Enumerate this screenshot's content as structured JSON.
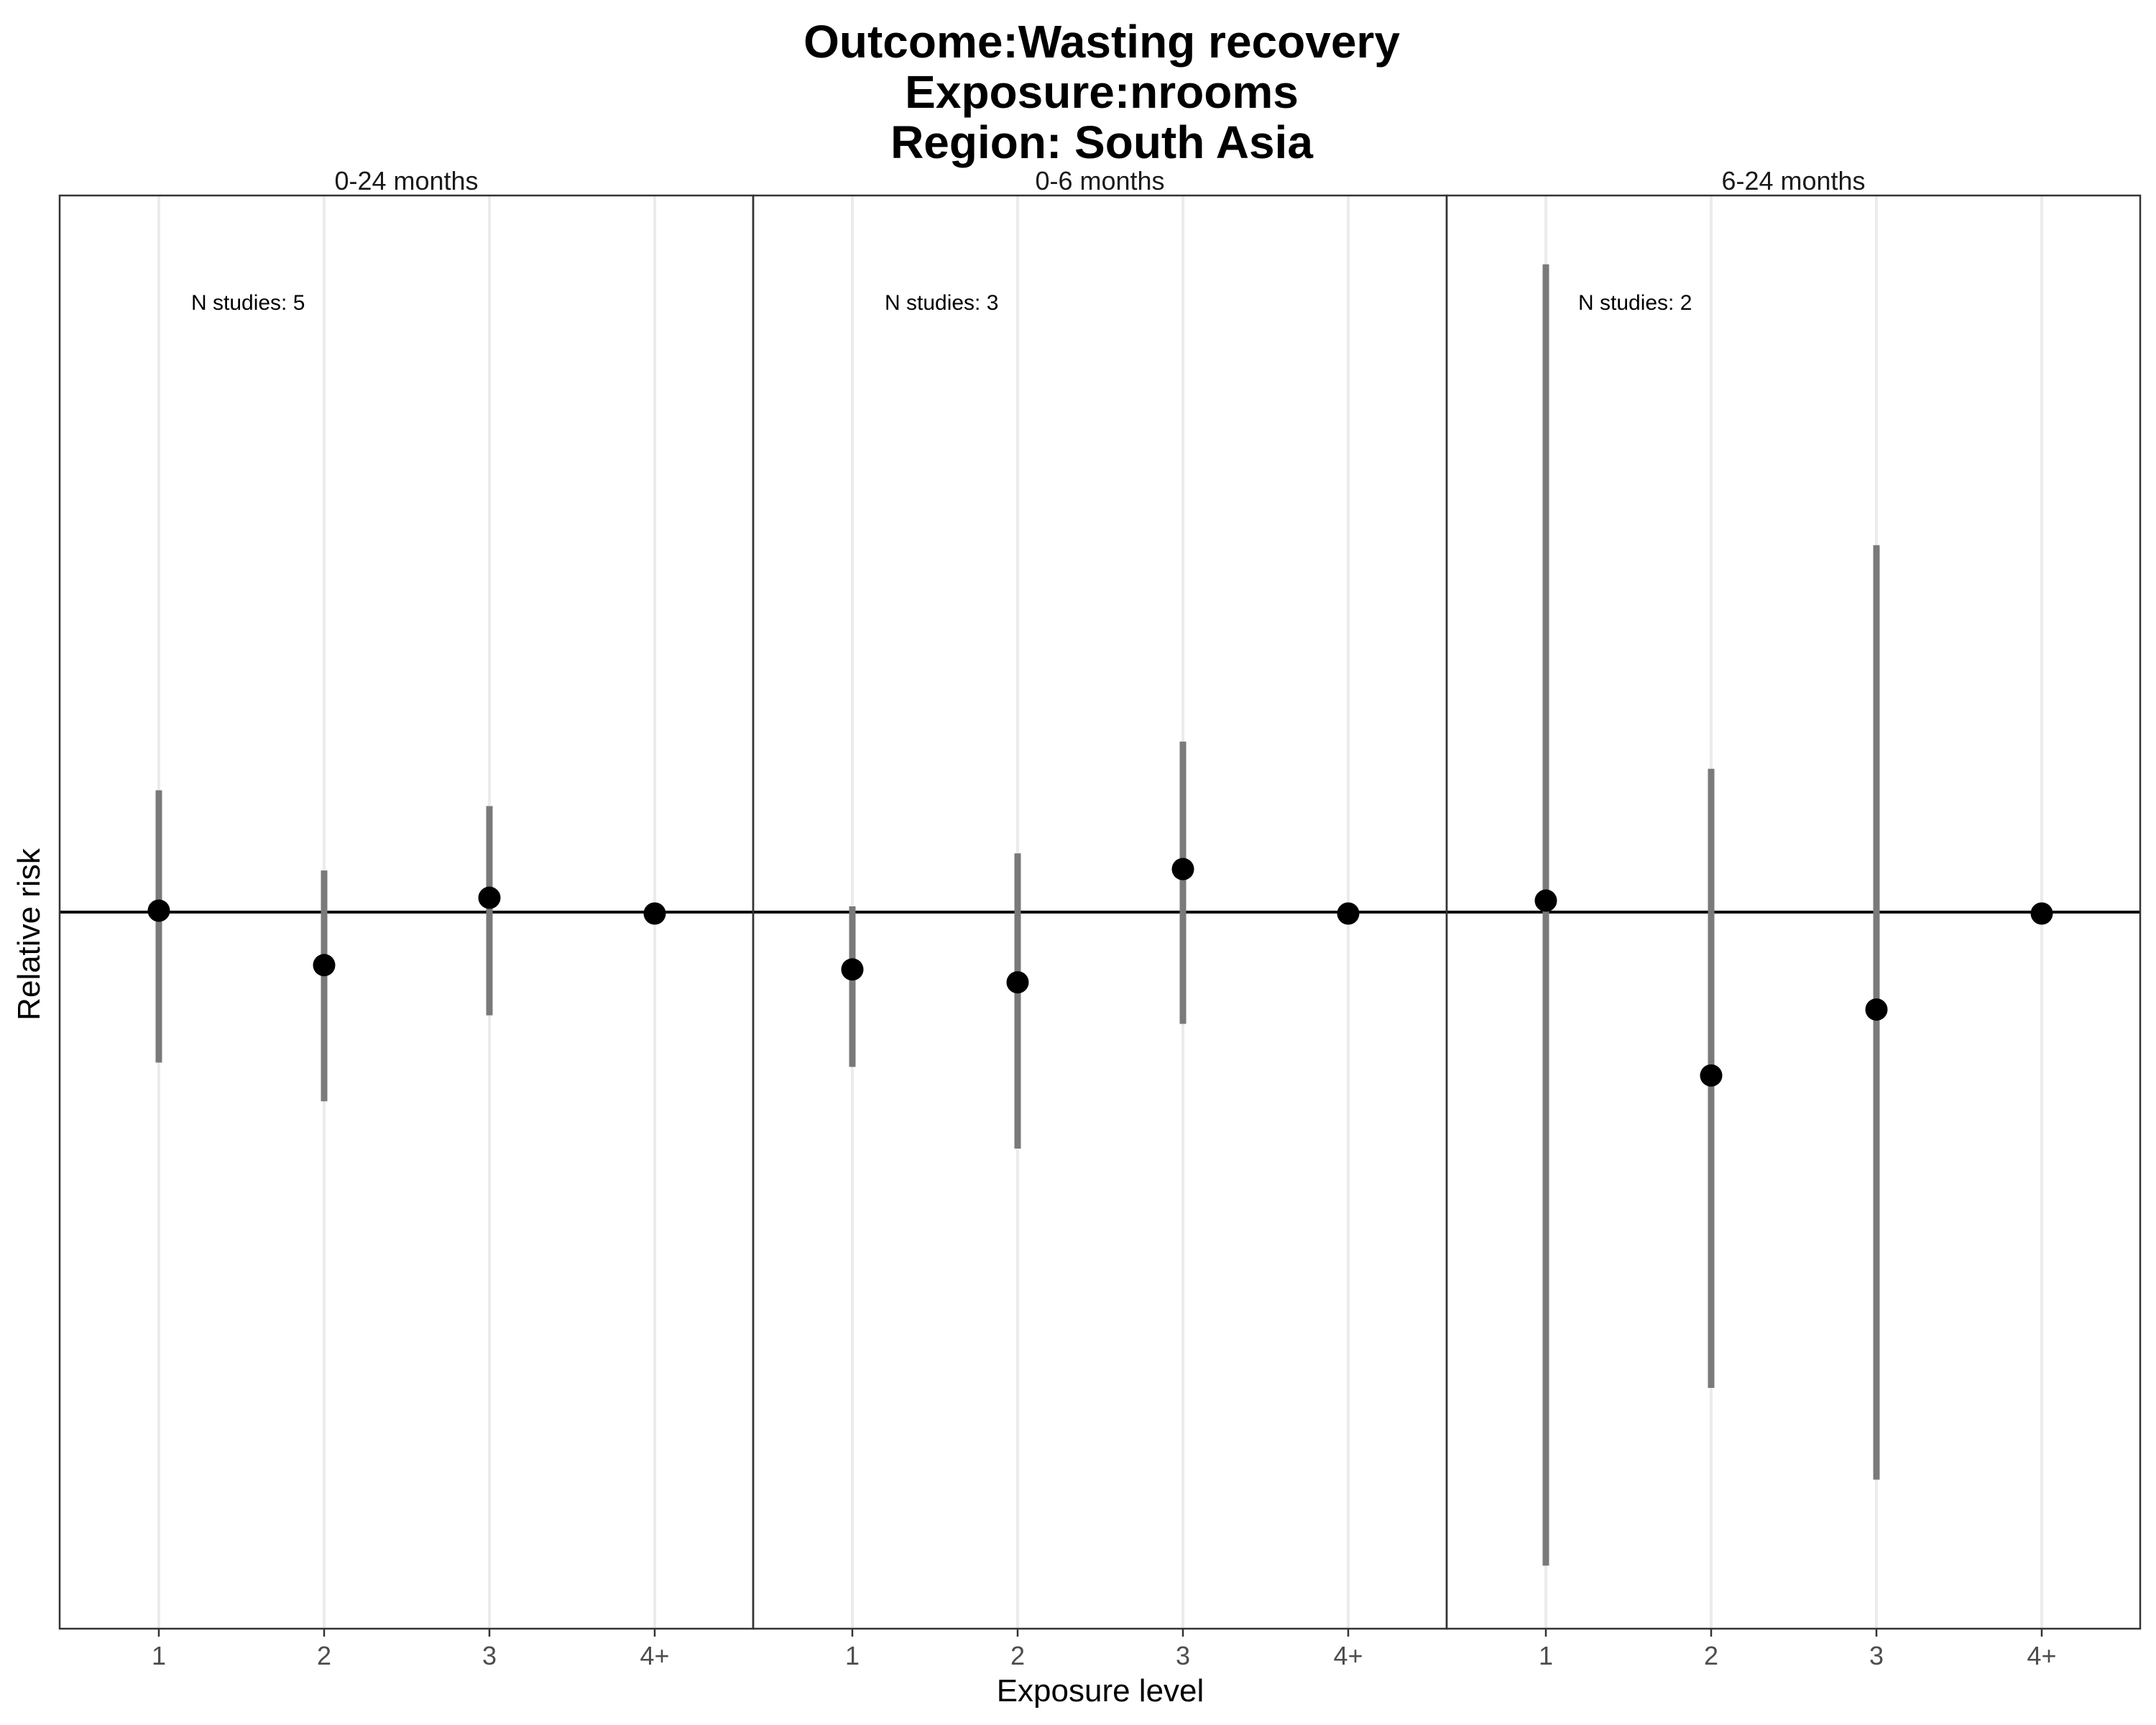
{
  "chart_data": {
    "type": "scatter",
    "title_lines": [
      "Outcome:Wasting recovery",
      "Exposure:nrooms",
      "Region: South Asia"
    ],
    "xlabel": "Exposure level",
    "ylabel": "Relative risk",
    "categories": [
      "1",
      "2",
      "3",
      "4+"
    ],
    "ylim": [
      0,
      1
    ],
    "reference_line": 0.5,
    "grid": "vertical major gridlines only",
    "panels": [
      {
        "strip": "0-24 months",
        "annotation": "N studies: 5",
        "estimate": [
          0.501,
          0.463,
          0.51,
          0.499
        ],
        "lower": [
          0.395,
          0.368,
          0.428,
          0.499
        ],
        "upper": [
          0.585,
          0.529,
          0.574,
          0.499
        ]
      },
      {
        "strip": "0-6 months",
        "annotation": "N studies: 3",
        "estimate": [
          0.46,
          0.451,
          0.53,
          0.499
        ],
        "lower": [
          0.392,
          0.335,
          0.422,
          0.499
        ],
        "upper": [
          0.504,
          0.541,
          0.619,
          0.499
        ]
      },
      {
        "strip": "6-24 months",
        "annotation": "N studies: 2",
        "estimate": [
          0.508,
          0.386,
          0.432,
          0.499
        ],
        "lower": [
          0.044,
          0.168,
          0.104,
          0.499
        ],
        "upper": [
          0.952,
          0.6,
          0.756,
          0.499
        ]
      }
    ]
  },
  "colors": {
    "point": "#000000",
    "errorbar": "#7a7a7a",
    "gridline": "#ebebeb",
    "panel_border": "#333333",
    "reference_line": "#000000",
    "tick_text": "#4d4d4d"
  }
}
